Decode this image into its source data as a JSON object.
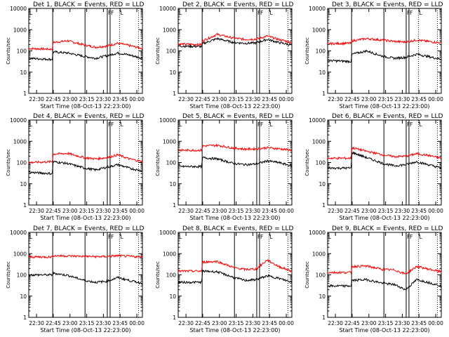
{
  "x_ticks": [
    "22:30",
    "22:45",
    "23:00",
    "23:15",
    "23:30",
    "23:45",
    "00:00"
  ],
  "y_ticks": [
    "1",
    "10",
    "100",
    "1000",
    "10000"
  ],
  "ylabel": "Counts/sec",
  "xlabel": "Start Time (08-Oct-13 22:23:00)",
  "colors": {
    "black_series": "#000000",
    "red_series": "#ff0000",
    "axis": "#000000"
  },
  "event_markers": {
    "solid_line_minutes": [
      21.5,
      50.5,
      70.5,
      73.0
    ],
    "dotted_line_minutes": [
      81.5,
      98.5
    ],
    "labels": [
      "F",
      "F",
      "L"
    ]
  },
  "chart_data": [
    {
      "type": "line",
      "title": "Det  1, BLACK = Events, RED = LLD",
      "xlabel": "Start Time (08-Oct-13 22:23:00)",
      "ylabel": "Counts/sec",
      "yscale": "log",
      "ylim": [
        1,
        10000
      ],
      "x_range_minutes_from_22_23": [
        0,
        102
      ],
      "series": [
        {
          "name": "BLACK",
          "x_minutes": [
            0,
            21,
            22,
            35,
            50,
            60,
            70,
            80,
            90,
            102
          ],
          "values": [
            45,
            40,
            90,
            80,
            55,
            45,
            60,
            80,
            65,
            45
          ]
        },
        {
          "name": "RED",
          "x_minutes": [
            0,
            21,
            22,
            35,
            50,
            60,
            70,
            80,
            90,
            102
          ],
          "values": [
            130,
            120,
            250,
            300,
            190,
            150,
            170,
            230,
            180,
            130
          ]
        }
      ]
    },
    {
      "type": "line",
      "title": "Det  2, BLACK = Events, RED = LLD",
      "xlabel": "Start Time (08-Oct-13 22:23:00)",
      "ylabel": "Counts/sec",
      "yscale": "log",
      "ylim": [
        1,
        10000
      ],
      "x_range_minutes_from_22_23": [
        0,
        102
      ],
      "series": [
        {
          "name": "BLACK",
          "x_minutes": [
            0,
            21,
            22,
            35,
            50,
            60,
            70,
            80,
            90,
            102
          ],
          "values": [
            170,
            160,
            220,
            380,
            250,
            230,
            240,
            350,
            250,
            190
          ]
        },
        {
          "name": "RED",
          "x_minutes": [
            0,
            21,
            22,
            35,
            50,
            60,
            70,
            80,
            90,
            102
          ],
          "values": [
            210,
            200,
            300,
            600,
            400,
            350,
            360,
            500,
            350,
            250
          ]
        }
      ]
    },
    {
      "type": "line",
      "title": "Det  3, BLACK = Events, RED = LLD",
      "xlabel": "Start Time (08-Oct-13 22:23:00)",
      "ylabel": "Counts/sec",
      "yscale": "log",
      "ylim": [
        1,
        10000
      ],
      "x_range_minutes_from_22_23": [
        0,
        102
      ],
      "series": [
        {
          "name": "BLACK",
          "x_minutes": [
            0,
            21,
            22,
            35,
            50,
            60,
            70,
            80,
            90,
            102
          ],
          "values": [
            35,
            32,
            70,
            100,
            55,
            45,
            50,
            70,
            55,
            40
          ]
        },
        {
          "name": "RED",
          "x_minutes": [
            0,
            21,
            22,
            35,
            50,
            60,
            70,
            80,
            90,
            102
          ],
          "values": [
            220,
            230,
            300,
            380,
            320,
            280,
            260,
            330,
            280,
            240
          ]
        }
      ]
    },
    {
      "type": "line",
      "title": "Det  4, BLACK = Events, RED = LLD",
      "xlabel": "Start Time (08-Oct-13 22:23:00)",
      "ylabel": "Counts/sec",
      "yscale": "log",
      "ylim": [
        1,
        10000
      ],
      "x_range_minutes_from_22_23": [
        0,
        102
      ],
      "series": [
        {
          "name": "BLACK",
          "x_minutes": [
            0,
            21,
            22,
            35,
            50,
            60,
            70,
            80,
            90,
            102
          ],
          "values": [
            35,
            30,
            110,
            90,
            55,
            45,
            60,
            80,
            55,
            40
          ]
        },
        {
          "name": "RED",
          "x_minutes": [
            0,
            21,
            22,
            35,
            50,
            60,
            70,
            80,
            90,
            102
          ],
          "values": [
            100,
            110,
            250,
            270,
            170,
            150,
            170,
            230,
            150,
            110
          ]
        }
      ]
    },
    {
      "type": "line",
      "title": "Det  5, BLACK = Events, RED = LLD",
      "xlabel": "Start Time (08-Oct-13 22:23:00)",
      "ylabel": "Counts/sec",
      "yscale": "log",
      "ylim": [
        1,
        10000
      ],
      "x_range_minutes_from_22_23": [
        0,
        102
      ],
      "series": [
        {
          "name": "BLACK",
          "x_minutes": [
            0,
            21,
            22,
            35,
            50,
            60,
            70,
            80,
            90,
            102
          ],
          "values": [
            65,
            65,
            170,
            150,
            90,
            80,
            85,
            120,
            100,
            70
          ]
        },
        {
          "name": "RED",
          "x_minutes": [
            0,
            21,
            22,
            35,
            50,
            60,
            70,
            80,
            90,
            102
          ],
          "values": [
            380,
            380,
            600,
            650,
            480,
            430,
            440,
            500,
            450,
            380
          ]
        }
      ]
    },
    {
      "type": "line",
      "title": "Det  6, BLACK = Events, RED = LLD",
      "xlabel": "Start Time (08-Oct-13 22:23:00)",
      "ylabel": "Counts/sec",
      "yscale": "log",
      "ylim": [
        1,
        10000
      ],
      "x_range_minutes_from_22_23": [
        0,
        102
      ],
      "series": [
        {
          "name": "BLACK",
          "x_minutes": [
            0,
            21,
            22,
            35,
            50,
            60,
            70,
            80,
            90,
            102
          ],
          "values": [
            55,
            55,
            300,
            170,
            90,
            70,
            80,
            110,
            80,
            55
          ]
        },
        {
          "name": "RED",
          "x_minutes": [
            0,
            21,
            22,
            35,
            50,
            60,
            70,
            80,
            90,
            102
          ],
          "values": [
            160,
            160,
            500,
            340,
            230,
            190,
            200,
            260,
            220,
            160
          ]
        }
      ]
    },
    {
      "type": "line",
      "title": "Det  7, BLACK = Events, RED = LLD",
      "xlabel": "Start Time (08-Oct-13 22:23:00)",
      "ylabel": "Counts/sec",
      "yscale": "log",
      "ylim": [
        1,
        10000
      ],
      "x_range_minutes_from_22_23": [
        0,
        102
      ],
      "series": [
        {
          "name": "BLACK",
          "x_minutes": [
            0,
            21,
            22,
            35,
            50,
            60,
            70,
            80,
            90,
            102
          ],
          "values": [
            100,
            100,
            120,
            95,
            55,
            45,
            50,
            75,
            55,
            40
          ]
        },
        {
          "name": "RED",
          "x_minutes": [
            0,
            21,
            22,
            35,
            50,
            60,
            70,
            80,
            90,
            102
          ],
          "values": [
            700,
            700,
            800,
            780,
            750,
            720,
            730,
            800,
            750,
            700
          ]
        }
      ]
    },
    {
      "type": "line",
      "title": "Det  8, BLACK = Events, RED = LLD",
      "xlabel": "Start Time (08-Oct-13 22:23:00)",
      "ylabel": "Counts/sec",
      "yscale": "log",
      "ylim": [
        1,
        10000
      ],
      "x_range_minutes_from_22_23": [
        0,
        102
      ],
      "series": [
        {
          "name": "BLACK",
          "x_minutes": [
            0,
            21,
            22,
            35,
            50,
            60,
            70,
            80,
            90,
            102
          ],
          "values": [
            45,
            45,
            150,
            140,
            75,
            55,
            60,
            90,
            70,
            45
          ]
        },
        {
          "name": "RED",
          "x_minutes": [
            0,
            21,
            22,
            35,
            50,
            60,
            70,
            80,
            90,
            102
          ],
          "values": [
            150,
            150,
            400,
            430,
            220,
            180,
            190,
            500,
            250,
            150
          ]
        }
      ]
    },
    {
      "type": "line",
      "title": "Det  9, BLACK = Events, RED = LLD",
      "xlabel": "Start Time (08-Oct-13 22:23:00)",
      "ylabel": "Counts/sec",
      "yscale": "log",
      "ylim": [
        1,
        10000
      ],
      "x_range_minutes_from_22_23": [
        0,
        102
      ],
      "series": [
        {
          "name": "BLACK",
          "x_minutes": [
            0,
            21,
            22,
            35,
            50,
            60,
            70,
            80,
            90,
            102
          ],
          "values": [
            30,
            30,
            55,
            60,
            40,
            35,
            20,
            60,
            45,
            30
          ]
        },
        {
          "name": "RED",
          "x_minutes": [
            0,
            21,
            22,
            35,
            50,
            60,
            70,
            80,
            90,
            102
          ],
          "values": [
            130,
            130,
            250,
            260,
            180,
            170,
            110,
            250,
            190,
            140
          ]
        }
      ]
    }
  ]
}
